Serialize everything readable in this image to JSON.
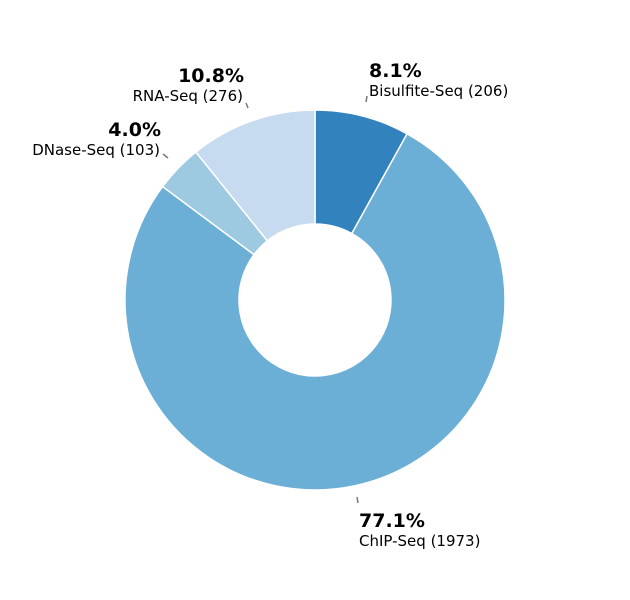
{
  "chart_data": {
    "type": "pie",
    "donut": true,
    "legend": "none",
    "slices": [
      {
        "label": "Bisulfite-Seq (206)",
        "category": "Bisulfite-Seq",
        "count": 206,
        "percent": "8.1%",
        "color": "#3182bd"
      },
      {
        "label": "ChIP-Seq (1973)",
        "category": "ChIP-Seq",
        "count": 1973,
        "percent": "77.1%",
        "color": "#6baed6"
      },
      {
        "label": "DNase-Seq (103)",
        "category": "DNase-Seq",
        "count": 103,
        "percent": "4.0%",
        "color": "#9ecae1"
      },
      {
        "label": "RNA-Seq (276)",
        "category": "RNA-Seq",
        "count": 276,
        "percent": "10.8%",
        "color": "#c6dbef"
      }
    ]
  }
}
